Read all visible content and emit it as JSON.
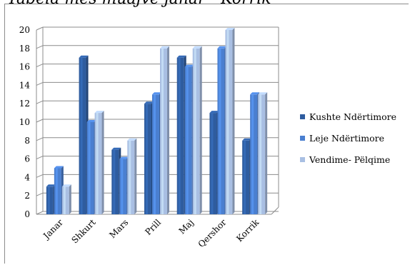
{
  "chart_data": {
    "type": "bar",
    "title": "Tabela mes muajve janar - Korrik",
    "categories": [
      "Janar",
      "Shkurt",
      "Mars",
      "Prill",
      "Maj",
      "Qershor",
      "Korrik"
    ],
    "series": [
      {
        "name": "Kushte Ndërtimore",
        "color": "#2E5C9F",
        "values": [
          3,
          17,
          7,
          12,
          17,
          11,
          8
        ]
      },
      {
        "name": "Leje Ndërtimore",
        "color": "#4A7FD0",
        "values": [
          5,
          10,
          6,
          13,
          16,
          18,
          13
        ]
      },
      {
        "name": "Vendime- Pëlqime",
        "color": "#A9BFE3",
        "values": [
          3,
          11,
          8,
          18,
          18,
          20,
          13
        ]
      }
    ],
    "ylim": [
      0,
      20
    ],
    "yticks": [
      0,
      2,
      4,
      6,
      8,
      10,
      12,
      14,
      16,
      18,
      20
    ],
    "grid": true,
    "legend_position": "right",
    "xlabel": "",
    "ylabel": ""
  }
}
